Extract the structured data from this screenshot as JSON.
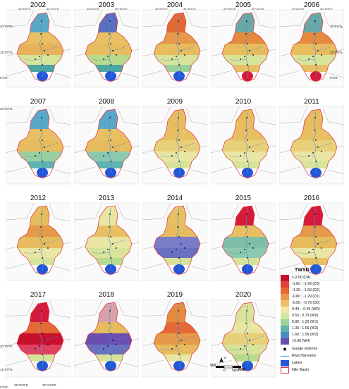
{
  "panels": [
    {
      "year": "2002",
      "c": [
        "#5aa8c8",
        "#e8c063",
        "#e8b25a",
        "#d8e39a",
        "#4aa6a0",
        "#2456d8"
      ]
    },
    {
      "year": "2003",
      "c": [
        "#5a6fc0",
        "#e8c063",
        "#e6bc5e",
        "#b7da8c",
        "#4aa6a0",
        "#2456d8"
      ]
    },
    {
      "year": "2004",
      "c": [
        "#e36a35",
        "#e49a48",
        "#e6bc5e",
        "#d8e39a",
        "#9cd09a",
        "#2456d8"
      ]
    },
    {
      "year": "2005",
      "c": [
        "#6aa8a8",
        "#e58a3f",
        "#e6bc5e",
        "#d8e39a",
        "#e8c063",
        "#d7193a"
      ]
    },
    {
      "year": "2006",
      "c": [
        "#6aa8a8",
        "#e58a3f",
        "#e6bc5e",
        "#d8e39a",
        "#e8c063",
        "#d7193a"
      ]
    },
    {
      "year": "2007",
      "c": [
        "#5aa8c8",
        "#e8c063",
        "#e6bc5e",
        "#9ccfa0",
        "#5fb3b0",
        "#2456d8"
      ]
    },
    {
      "year": "2008",
      "c": [
        "#5aa8c8",
        "#e8c063",
        "#e6bc5e",
        "#8dc9b0",
        "#5fb3b0",
        "#2456d8"
      ]
    },
    {
      "year": "2009",
      "c": [
        "#e6bc5e",
        "#e8c063",
        "#e8cf7a",
        "#e9e5a2",
        "#d8e39a",
        "#2456d8"
      ]
    },
    {
      "year": "2010",
      "c": [
        "#e6bc5e",
        "#e8c063",
        "#e8cf7a",
        "#e9e5a2",
        "#d8e39a",
        "#2456d8"
      ]
    },
    {
      "year": "2011",
      "c": [
        "#e6bc5e",
        "#e8c063",
        "#e8cf7a",
        "#e9e5a2",
        "#d8e39a",
        "#2456d8"
      ]
    },
    {
      "year": "2012",
      "c": [
        "#e6bc5e",
        "#e49a48",
        "#e6bc5e",
        "#e9e5a2",
        "#d8e39a",
        "#2456d8"
      ]
    },
    {
      "year": "2013",
      "c": [
        "#e9e5a2",
        "#e8c063",
        "#e9e5a2",
        "#d8e39a",
        "#b7da8c",
        "#2456d8"
      ]
    },
    {
      "year": "2014",
      "c": [
        "#e8c063",
        "#e6bc5e",
        "#7a7cc8",
        "#6a6fc0",
        "#d8e39a",
        "#2456d8"
      ]
    },
    {
      "year": "2015",
      "c": [
        "#d7193a",
        "#e8c063",
        "#7fbfa8",
        "#8dc9b0",
        "#d8e39a",
        "#2456d8"
      ]
    },
    {
      "year": "2016",
      "c": [
        "#d7193a",
        "#e49a48",
        "#e6bc5e",
        "#e9e5a2",
        "#e8c063",
        "#2456d8"
      ]
    },
    {
      "year": "2017",
      "c": [
        "#d7193a",
        "#e36a35",
        "#c8102e",
        "#e04060",
        "#d8e39a",
        "#2456d8"
      ]
    },
    {
      "year": "2018",
      "c": [
        "#d8a0a8",
        "#e6bc5e",
        "#6a4fb0",
        "#6a6fc0",
        "#d8e39a",
        "#2456d8"
      ]
    },
    {
      "year": "2019",
      "c": [
        "#e58a3f",
        "#e36a35",
        "#e49a48",
        "#e6bc5e",
        "#e9e5a2",
        "#2456d8"
      ]
    },
    {
      "year": "2020",
      "c": [
        "#d8e39a",
        "#e9e5a2",
        "#e8cf7a",
        "#d8e39a",
        "#b7da8c",
        "#2456d8"
      ]
    }
  ],
  "coords": {
    "top_left": "25°20'0\"E",
    "top_right": "30°10'0\"E",
    "lat_30": "30°0'0\"N",
    "lat_15": "15°0'0\"N",
    "lat_0": "0°0'0\"",
    "bottom_left": "25°20'0\"E",
    "bottom_right": "30°10'0\"E"
  },
  "legend": {
    "title": "TWSD",
    "classes": [
      {
        "label": "<-2.00 (D4)",
        "color": "#c8102e"
      },
      {
        "label": "-1.60 : -1.99 (D3)",
        "color": "#e2413a"
      },
      {
        "label": "-1.30 : -1.59 (D2)",
        "color": "#e36a35"
      },
      {
        "label": "-0.80 : -1.29 (D1)",
        "color": "#e8974a"
      },
      {
        "label": "-0.50 : -0.79 (D0)",
        "color": "#ecc06a"
      },
      {
        "label": "0.49 : -0.49 (WD)",
        "color": "#f1e7a6"
      },
      {
        "label": "0.50 : 0.79 (W0)",
        "color": "#d1e7a2"
      },
      {
        "label": "0.80 : 1.29 (W1)",
        "color": "#9fd39c"
      },
      {
        "label": "1.30 : 1.59 (W2)",
        "color": "#5fb5a8"
      },
      {
        "label": "1.60 : 1.99 (W3)",
        "color": "#4a8cc0"
      },
      {
        "label": ">2.00 (W4)",
        "color": "#6a4fb0"
      }
    ],
    "gauge": "Gauge stations",
    "river": "River/Streams",
    "lakes": "Lakes",
    "basin": "Nile Basin"
  },
  "scale": {
    "left": "500",
    "mid": "0",
    "right": "500",
    "unit": "Km",
    "north": "N"
  }
}
